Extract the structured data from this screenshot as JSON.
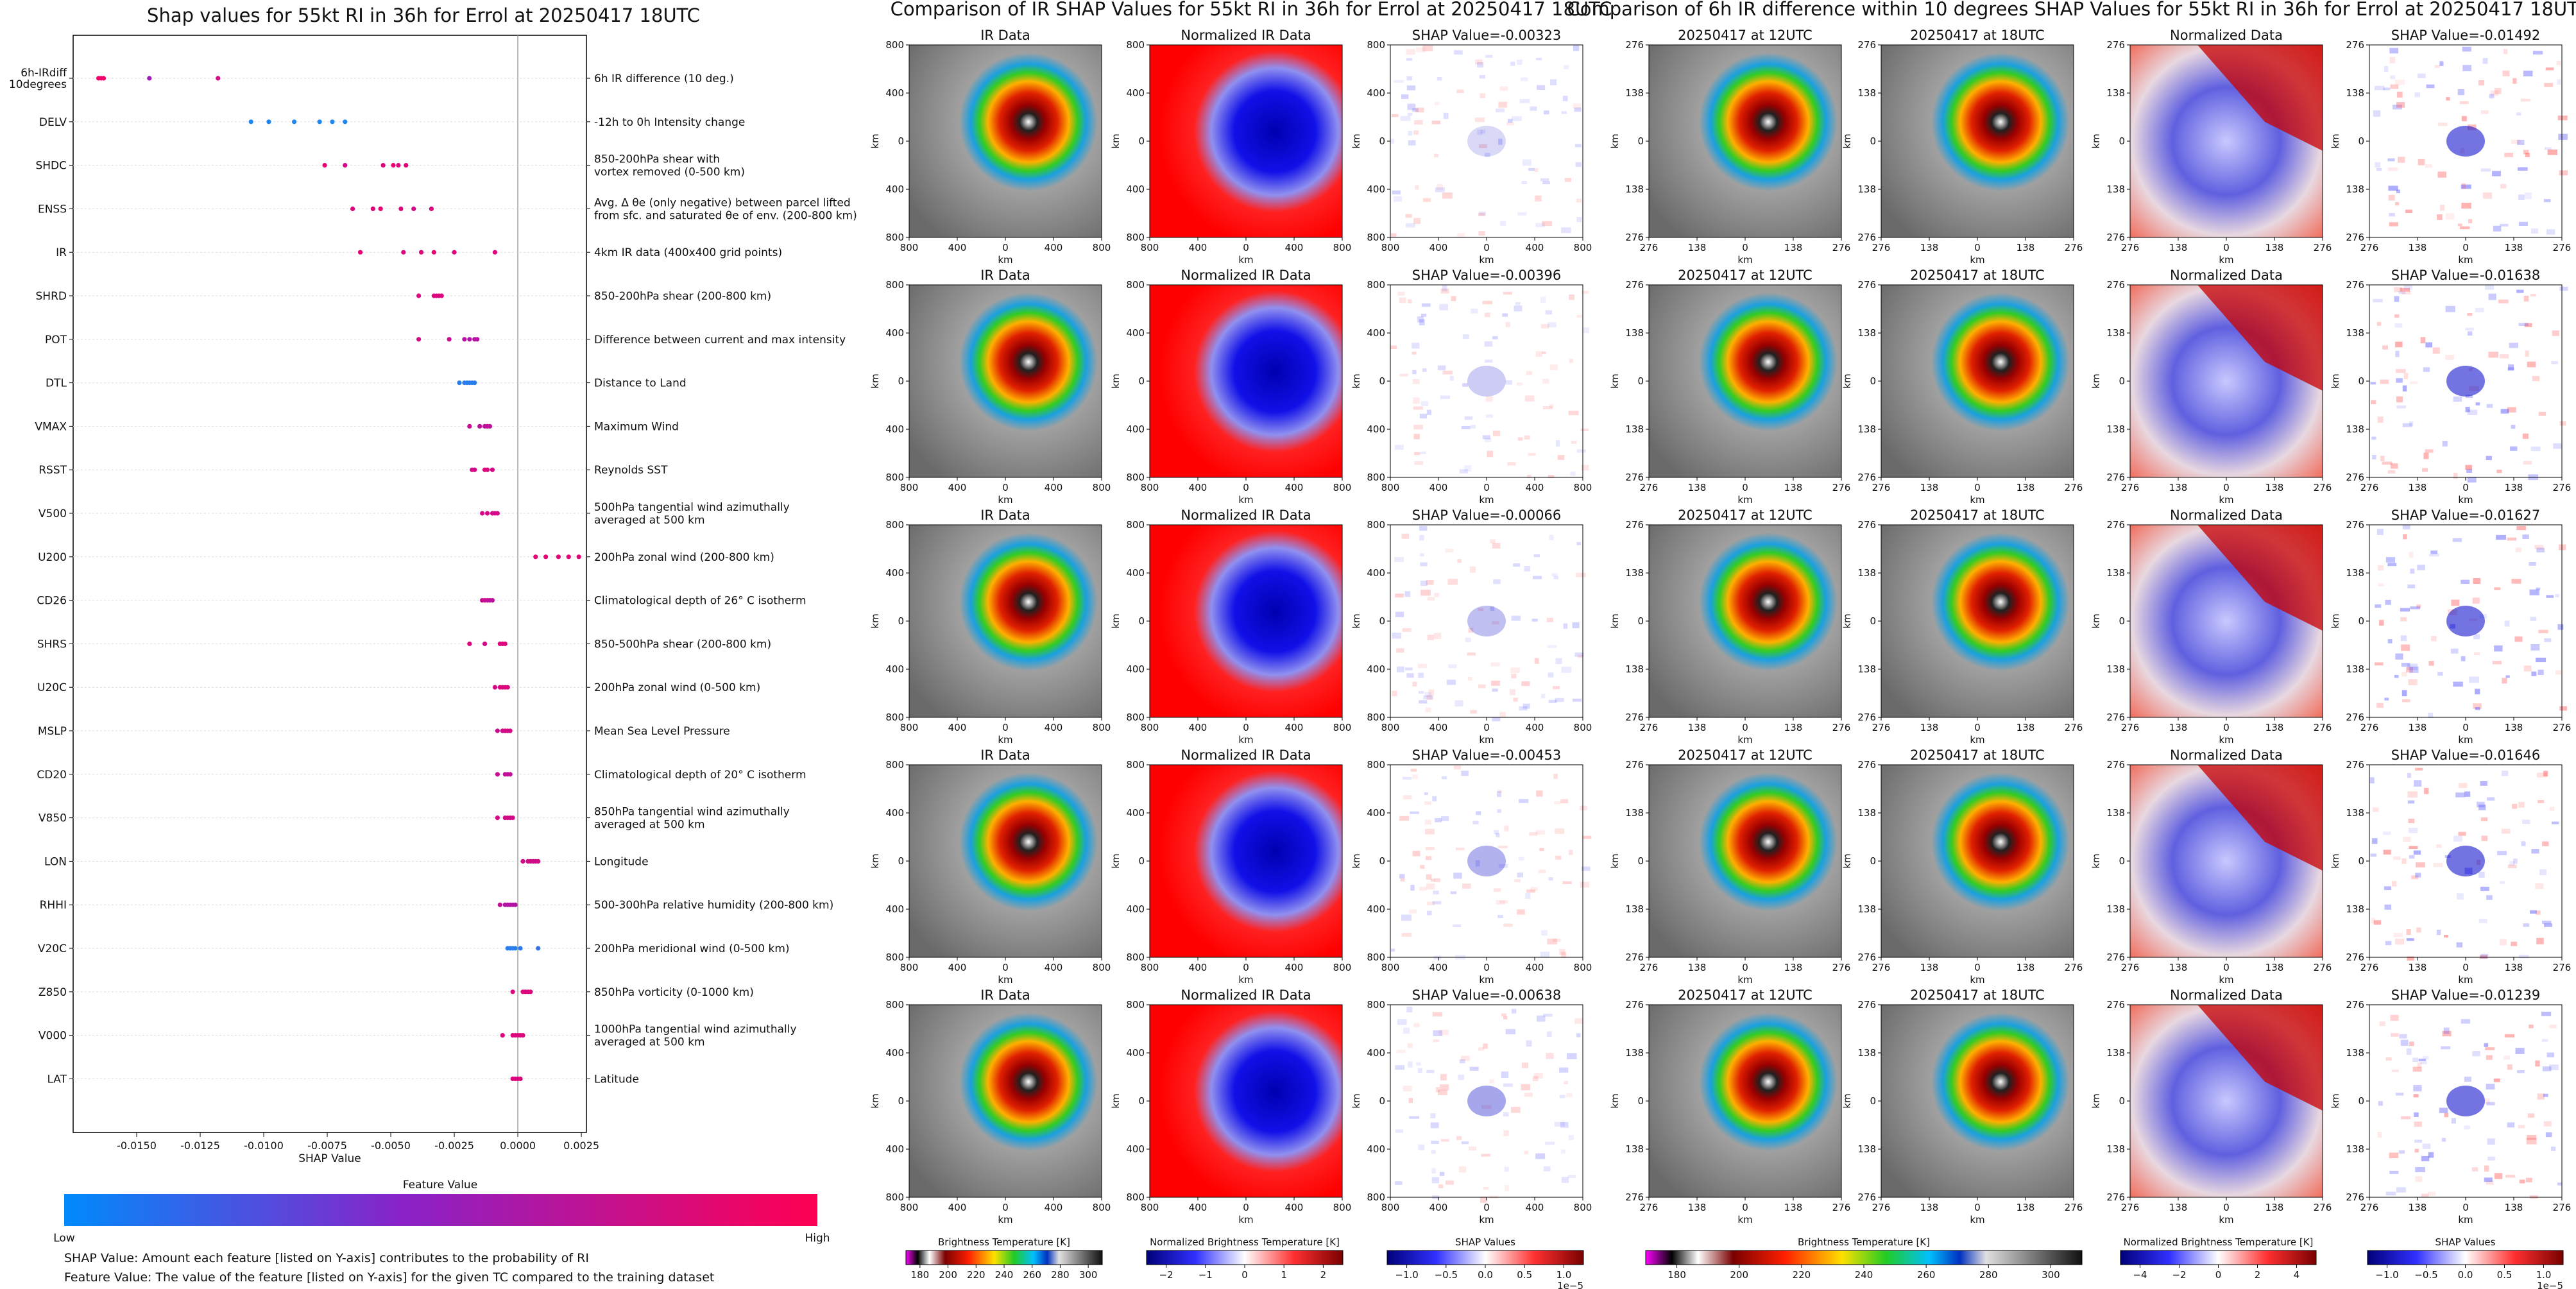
{
  "titles": {
    "left": "Shap values for 55kt RI in 36h for Errol at 20250417 18UTC",
    "middle": "Comparison of IR SHAP Values for 55kt RI in 36h for Errol at 20250417 18UTC",
    "right": "Comparison of 6h IR difference within 10 degrees SHAP Values for 55kt RI in 36h for Errol at 20250417 18UTC"
  },
  "colors": {
    "low": "#1e88f0",
    "mid": "#8a22c8",
    "high": "#f2006a"
  },
  "chart_data": [
    {
      "type": "scatter",
      "name": "shap-beeswarm",
      "title": "Shap values for 55kt RI in 36h for Errol at 20250417 18UTC",
      "xlabel": "SHAP Value",
      "xlim": [
        -0.0175,
        0.0027
      ],
      "xticks": [
        "-0.0150",
        "-0.0125",
        "-0.0100",
        "-0.0075",
        "-0.0050",
        "-0.0025",
        "0.0000",
        "0.0025"
      ],
      "xtick_values": [
        -0.015,
        -0.0125,
        -0.01,
        -0.0075,
        -0.005,
        -0.0025,
        0,
        0.0025
      ],
      "features": [
        {
          "name": "6h-IRdiff\n10degrees",
          "desc": "6h IR difference (10 deg.)",
          "points": [
            [
              -0.0165,
              1
            ],
            [
              -0.0164,
              1
            ],
            [
              -0.0163,
              1
            ],
            [
              -0.0145,
              0.6
            ],
            [
              -0.0118,
              0.85
            ]
          ]
        },
        {
          "name": "DELV",
          "desc": "-12h to 0h Intensity change",
          "points": [
            [
              -0.0105,
              0
            ],
            [
              -0.0098,
              0
            ],
            [
              -0.0088,
              0
            ],
            [
              -0.0078,
              0
            ],
            [
              -0.0073,
              0
            ],
            [
              -0.0068,
              0
            ]
          ]
        },
        {
          "name": "SHDC",
          "desc": "850-200hPa shear with\nvortex removed (0-500 km)",
          "points": [
            [
              -0.0076,
              0.95
            ],
            [
              -0.0068,
              0.85
            ],
            [
              -0.0053,
              0.9
            ],
            [
              -0.0049,
              0.95
            ],
            [
              -0.0047,
              0.9
            ],
            [
              -0.0044,
              0.92
            ]
          ]
        },
        {
          "name": "ENSS",
          "desc": "Avg. Δ θe (only negative) between parcel lifted\nfrom sfc. and saturated θe of env. (200-800 km)",
          "points": [
            [
              -0.0065,
              0.9
            ],
            [
              -0.0057,
              0.9
            ],
            [
              -0.0054,
              0.95
            ],
            [
              -0.0046,
              0.9
            ],
            [
              -0.0041,
              0.85
            ],
            [
              -0.0034,
              0.9
            ]
          ]
        },
        {
          "name": "IR",
          "desc": "4km IR data (400x400 grid points)",
          "points": [
            [
              -0.0062,
              0.95
            ],
            [
              -0.0045,
              0.9
            ],
            [
              -0.0038,
              0.9
            ],
            [
              -0.0033,
              0.95
            ],
            [
              -0.0025,
              0.9
            ],
            [
              -0.0009,
              0.9
            ]
          ]
        },
        {
          "name": "SHRD",
          "desc": "850-200hPa shear (200-800 km)",
          "points": [
            [
              -0.0039,
              0.9
            ],
            [
              -0.0033,
              0.9
            ],
            [
              -0.0032,
              0.9
            ],
            [
              -0.0031,
              0.9
            ],
            [
              -0.003,
              0.9
            ]
          ]
        },
        {
          "name": "POT",
          "desc": "Difference between current and max intensity",
          "points": [
            [
              -0.0039,
              0.85
            ],
            [
              -0.0027,
              0.8
            ],
            [
              -0.0021,
              0.7
            ],
            [
              -0.0019,
              0.7
            ],
            [
              -0.0017,
              0.7
            ],
            [
              -0.0016,
              0.7
            ]
          ]
        },
        {
          "name": "DTL",
          "desc": "Distance to Land",
          "points": [
            [
              -0.0023,
              0.05
            ],
            [
              -0.0021,
              0.05
            ],
            [
              -0.002,
              0.05
            ],
            [
              -0.0019,
              0.05
            ],
            [
              -0.0018,
              0.05
            ],
            [
              -0.0017,
              0.05
            ]
          ]
        },
        {
          "name": "VMAX",
          "desc": "Maximum Wind",
          "points": [
            [
              -0.0019,
              0.8
            ],
            [
              -0.0015,
              0.75
            ],
            [
              -0.0013,
              0.75
            ],
            [
              -0.0012,
              0.75
            ],
            [
              -0.0011,
              0.75
            ]
          ]
        },
        {
          "name": "RSST",
          "desc": "Reynolds SST",
          "points": [
            [
              -0.0018,
              0.85
            ],
            [
              -0.0017,
              0.85
            ],
            [
              -0.0013,
              0.9
            ],
            [
              -0.0012,
              0.9
            ],
            [
              -0.001,
              0.85
            ]
          ]
        },
        {
          "name": "V500",
          "desc": "500hPa tangential wind azimuthally\naveraged at 500 km",
          "points": [
            [
              -0.0014,
              0.85
            ],
            [
              -0.0012,
              0.85
            ],
            [
              -0.001,
              0.85
            ],
            [
              -0.0009,
              0.85
            ],
            [
              -0.0008,
              0.85
            ]
          ]
        },
        {
          "name": "U200",
          "desc": "200hPa zonal wind (200-800 km)",
          "points": [
            [
              0.0007,
              0.95
            ],
            [
              0.0011,
              0.95
            ],
            [
              0.0016,
              0.95
            ],
            [
              0.002,
              0.95
            ],
            [
              0.0024,
              0.95
            ]
          ]
        },
        {
          "name": "CD26",
          "desc": "Climatological depth of 26° C isotherm",
          "points": [
            [
              -0.0014,
              0.8
            ],
            [
              -0.0013,
              0.8
            ],
            [
              -0.0012,
              0.8
            ],
            [
              -0.0011,
              0.75
            ],
            [
              -0.001,
              0.75
            ]
          ]
        },
        {
          "name": "SHRS",
          "desc": "850-500hPa shear (200-800 km)",
          "points": [
            [
              -0.0019,
              0.9
            ],
            [
              -0.0013,
              0.85
            ],
            [
              -0.0007,
              0.9
            ],
            [
              -0.0006,
              0.9
            ],
            [
              -0.0005,
              0.9
            ]
          ]
        },
        {
          "name": "U20C",
          "desc": "200hPa zonal wind (0-500 km)",
          "points": [
            [
              -0.0009,
              0.85
            ],
            [
              -0.0007,
              0.9
            ],
            [
              -0.0006,
              0.9
            ],
            [
              -0.0005,
              0.9
            ],
            [
              -0.0004,
              0.9
            ]
          ]
        },
        {
          "name": "MSLP",
          "desc": "Mean Sea Level Pressure",
          "points": [
            [
              -0.0008,
              0.8
            ],
            [
              -0.0006,
              0.85
            ],
            [
              -0.0005,
              0.85
            ],
            [
              -0.0004,
              0.85
            ],
            [
              -0.0003,
              0.85
            ]
          ]
        },
        {
          "name": "CD20",
          "desc": "Climatological depth of 20° C isotherm",
          "points": [
            [
              -0.0008,
              0.8
            ],
            [
              -0.0005,
              0.75
            ],
            [
              -0.0004,
              0.75
            ],
            [
              -0.0003,
              0.75
            ]
          ]
        },
        {
          "name": "V850",
          "desc": "850hPa tangential wind azimuthally\naveraged at 500 km",
          "points": [
            [
              -0.0008,
              0.85
            ],
            [
              -0.0005,
              0.85
            ],
            [
              -0.0004,
              0.85
            ],
            [
              -0.0003,
              0.85
            ],
            [
              -0.0002,
              0.85
            ]
          ]
        },
        {
          "name": "LON",
          "desc": "Longitude",
          "points": [
            [
              0.0002,
              0.85
            ],
            [
              0.0004,
              0.85
            ],
            [
              0.0005,
              0.85
            ],
            [
              0.0006,
              0.85
            ],
            [
              0.0007,
              0.85
            ],
            [
              0.0008,
              0.85
            ]
          ]
        },
        {
          "name": "RHHI",
          "desc": "500-300hPa relative humidity (200-800 km)",
          "points": [
            [
              -0.0007,
              0.75
            ],
            [
              -0.0005,
              0.7
            ],
            [
              -0.0004,
              0.7
            ],
            [
              -0.0003,
              0.7
            ],
            [
              -0.0002,
              0.7
            ],
            [
              -0.0001,
              0.7
            ]
          ]
        },
        {
          "name": "V20C",
          "desc": "200hPa meridional wind (0-500 km)",
          "points": [
            [
              -0.0004,
              0.05
            ],
            [
              -0.0003,
              0.05
            ],
            [
              -0.0002,
              0.05
            ],
            [
              -0.0001,
              0.05
            ],
            [
              0.0001,
              0.05
            ],
            [
              0.0008,
              0.1
            ]
          ]
        },
        {
          "name": "Z850",
          "desc": "850hPa vorticity (0-1000 km)",
          "points": [
            [
              -0.0002,
              0.9
            ],
            [
              0.0002,
              0.9
            ],
            [
              0.0003,
              0.9
            ],
            [
              0.0004,
              0.9
            ],
            [
              0.0005,
              0.9
            ]
          ]
        },
        {
          "name": "V000",
          "desc": "1000hPa tangential wind azimuthally\naveraged at 500 km",
          "points": [
            [
              -0.0006,
              0.9
            ],
            [
              -0.0002,
              0.9
            ],
            [
              -0.0001,
              0.9
            ],
            [
              0.0,
              0.9
            ],
            [
              0.0001,
              0.9
            ],
            [
              0.0002,
              0.9
            ]
          ]
        },
        {
          "name": "LAT",
          "desc": "Latitude",
          "points": [
            [
              -0.0002,
              0.9
            ],
            [
              -0.0001,
              0.9
            ],
            [
              0.0,
              0.9
            ],
            [
              0.0001,
              0.9
            ]
          ]
        }
      ],
      "colorbar": {
        "label": "Feature Value",
        "low": "Low",
        "high": "High"
      }
    }
  ],
  "notes": [
    "SHAP Value: Amount each feature [listed on Y-axis] contributes to the probability of RI",
    "Feature Value: The value of the feature [listed on Y-axis] for the given TC compared to the training dataset"
  ],
  "ir_panels": {
    "titles": [
      "IR Data",
      "Normalized IR Data"
    ],
    "shap_values": [
      "SHAP Value=-0.00323",
      "SHAP Value=-0.00396",
      "SHAP Value=-0.00066",
      "SHAP Value=-0.00453",
      "SHAP Value=-0.00638"
    ],
    "axis_label": "km",
    "y_ticks": [
      "800",
      "400",
      "0",
      "400",
      "800"
    ],
    "x_ticks": [
      "800",
      "400",
      "0",
      "400",
      "800"
    ]
  },
  "diff_panels": {
    "titles": [
      "20250417 at 12UTC",
      "20250417 at 18UTC",
      "Normalized Data"
    ],
    "shap_values": [
      "SHAP Value=-0.01492",
      "SHAP Value=-0.01638",
      "SHAP Value=-0.01627",
      "SHAP Value=-0.01646",
      "SHAP Value=-0.01239"
    ],
    "axis_label": "km",
    "y_ticks": [
      "276",
      "138",
      "0",
      "138",
      "276"
    ],
    "x_ticks": [
      "276",
      "138",
      "0",
      "138",
      "276"
    ]
  },
  "colorbars": [
    {
      "label": "Brightness Temperature [K]",
      "ticks": [
        "180",
        "200",
        "220",
        "240",
        "260",
        "280",
        "300"
      ]
    },
    {
      "label": "Normalized Brightness Temperature [K]",
      "ticks": [
        "−2",
        "−1",
        "0",
        "1",
        "2"
      ]
    },
    {
      "label": "SHAP Values",
      "ticks": [
        "−1.0",
        "−0.5",
        "0.0",
        "0.5",
        "1.0"
      ],
      "exp": "1e−5"
    },
    {
      "label": "Brightness Temperature [K]",
      "ticks": [
        "180",
        "200",
        "220",
        "240",
        "260",
        "280",
        "300"
      ]
    },
    {
      "label": "Normalized Brightness Temperature [K]",
      "ticks": [
        "−4",
        "−2",
        "0",
        "2",
        "4"
      ]
    },
    {
      "label": "SHAP Values",
      "ticks": [
        "−1.0",
        "−0.5",
        "0.0",
        "0.5",
        "1.0"
      ],
      "exp": "1e−5"
    }
  ]
}
